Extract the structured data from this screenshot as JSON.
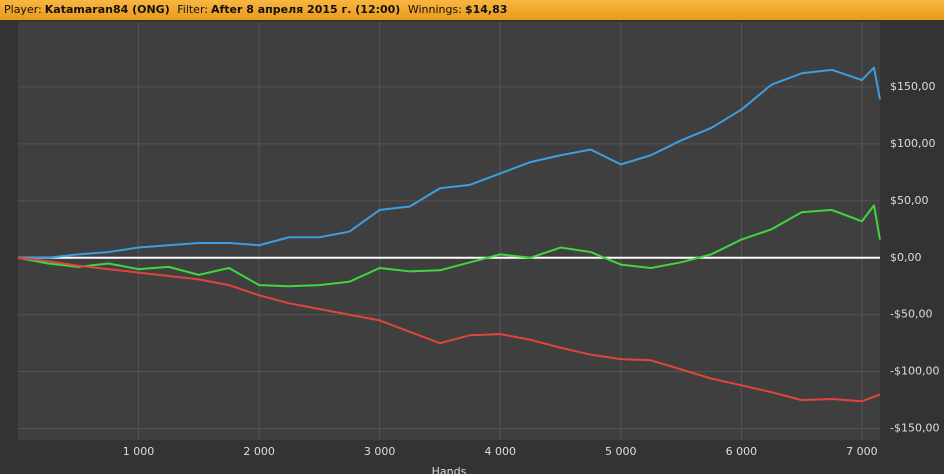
{
  "header": {
    "player_label": "Player:",
    "player": "Katamaran84 (ONG)",
    "filter_label": "Filter:",
    "filter": "After 8 апреля 2015 г. (12:00)",
    "winnings_label": "Winnings:",
    "winnings": "$14,83"
  },
  "chart_data": {
    "type": "line",
    "x_label": "Hands",
    "x": [
      0,
      250,
      500,
      750,
      1000,
      1250,
      1500,
      1750,
      2000,
      2250,
      2500,
      2750,
      3000,
      3250,
      3500,
      3750,
      4000,
      4250,
      4500,
      4750,
      5000,
      5250,
      5500,
      5750,
      6000,
      6250,
      6500,
      6750,
      7000,
      7100,
      7150
    ],
    "series": [
      {
        "color": "#3d9ee0",
        "values": [
          0,
          0,
          3,
          5,
          9,
          11,
          13,
          13,
          11,
          18,
          18,
          23,
          42,
          45,
          61,
          64,
          74,
          84,
          90,
          95,
          82,
          90,
          103,
          114,
          130,
          152,
          162,
          165,
          156,
          167,
          139
        ]
      },
      {
        "color": "#3fd63f",
        "values": [
          0,
          -5,
          -8,
          -5,
          -10,
          -8,
          -15,
          -9,
          -24,
          -25,
          -24,
          -21,
          -9,
          -12,
          -11,
          -4,
          3,
          0,
          9,
          5,
          -6,
          -9,
          -4,
          3,
          16,
          25,
          40,
          42,
          32,
          46,
          16
        ]
      },
      {
        "color": "#e0443c",
        "values": [
          0,
          -3,
          -7,
          -10,
          -13,
          -16,
          -19,
          -24,
          -33,
          -40,
          -45,
          -50,
          -55,
          -65,
          -75,
          -68,
          -67,
          -72,
          -79,
          -85,
          -89,
          -90,
          -98,
          -106,
          -112,
          -118,
          -125,
          -124,
          -126,
          -122,
          -120
        ]
      }
    ],
    "xlim": [
      0,
      7150
    ],
    "ylim": [
      -160,
      207
    ],
    "xticks": [
      {
        "value": 1000,
        "label": "1 000"
      },
      {
        "value": 2000,
        "label": "2 000"
      },
      {
        "value": 3000,
        "label": "3 000"
      },
      {
        "value": 4000,
        "label": "4 000"
      },
      {
        "value": 5000,
        "label": "5 000"
      },
      {
        "value": 6000,
        "label": "6 000"
      },
      {
        "value": 7000,
        "label": "7 000"
      }
    ],
    "yticks": [
      {
        "value": -150,
        "label": "-$150,00"
      },
      {
        "value": -100,
        "label": "-$100,00"
      },
      {
        "value": -50,
        "label": "-$50,00"
      },
      {
        "value": 0,
        "label": "$0,00"
      },
      {
        "value": 50,
        "label": "$50,00"
      },
      {
        "value": 100,
        "label": "$100,00"
      },
      {
        "value": 150,
        "label": "$150,00"
      }
    ],
    "grid": true
  }
}
